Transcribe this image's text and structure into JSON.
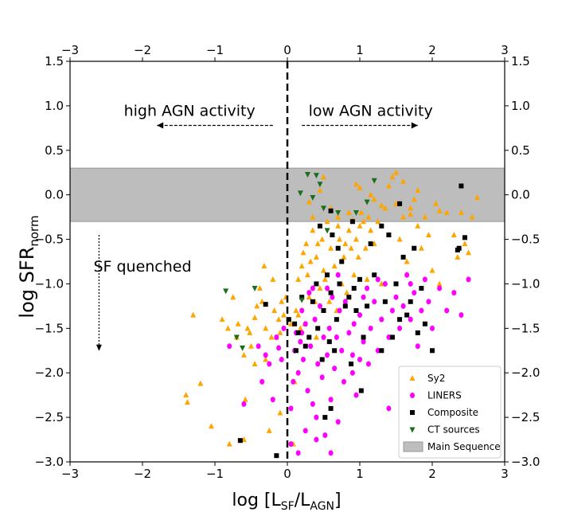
{
  "chart_data": {
    "type": "scatter",
    "xlim": [
      -3,
      3
    ],
    "ylim": [
      -3.0,
      1.5
    ],
    "xticks": [
      "−3",
      "−2",
      "−1",
      "0",
      "1",
      "2",
      "3"
    ],
    "xtick_values": [
      -3,
      -2,
      -1,
      0,
      1,
      2,
      3
    ],
    "yticks": [
      "−3.0",
      "−2.5",
      "−2.0",
      "−1.5",
      "−1.0",
      "−0.5",
      "0.0",
      "0.5",
      "1.0",
      "1.5"
    ],
    "ytick_values": [
      -3.0,
      -2.5,
      -2.0,
      -1.5,
      -1.0,
      -0.5,
      0.0,
      0.5,
      1.0,
      1.5
    ],
    "xlabel_main": "log [L",
    "xlabel_sub1": "SF",
    "xlabel_mid": "/L",
    "xlabel_sub2": "AGN",
    "xlabel_end": "]",
    "ylabel_main": "log SFR",
    "ylabel_sub": "norm",
    "main_sequence": {
      "label": "Main Sequence",
      "ymin": -0.3,
      "ymax": 0.3,
      "color": "#bdbdbd"
    },
    "vertical_line_x": 0,
    "annotations": [
      {
        "text": "high AGN activity",
        "x": -1.35,
        "y": 0.95,
        "arrow_from": -0.2,
        "arrow_to": -1.8,
        "arrow_y": 0.78
      },
      {
        "text": "low AGN activity",
        "x": 1.15,
        "y": 0.95,
        "arrow_from": 0.2,
        "arrow_to": 1.8,
        "arrow_y": 0.78
      },
      {
        "text": "SF quenched",
        "x": -2.0,
        "y": -0.8,
        "arrow_x": -2.6,
        "arrow_from": -0.45,
        "arrow_to": -1.7
      }
    ],
    "legend_position": "lower-right",
    "series": [
      {
        "name": "Sy2",
        "marker": "triangle-up",
        "color": "#ffa500",
        "points": [
          [
            -1.4,
            -2.25
          ],
          [
            -1.38,
            -2.33
          ],
          [
            -1.3,
            -1.35
          ],
          [
            -1.2,
            -2.12
          ],
          [
            -1.05,
            -2.6
          ],
          [
            -0.9,
            -1.4
          ],
          [
            -0.82,
            -1.5
          ],
          [
            -0.8,
            -2.8
          ],
          [
            -0.75,
            -1.15
          ],
          [
            -0.7,
            -1.6
          ],
          [
            -0.68,
            -1.45
          ],
          [
            -0.6,
            -1.8
          ],
          [
            -0.58,
            -2.3
          ],
          [
            -0.55,
            -1.5
          ],
          [
            -0.52,
            -1.55
          ],
          [
            -0.5,
            -1.7
          ],
          [
            -0.45,
            -1.38
          ],
          [
            -0.42,
            -1.25
          ],
          [
            -0.38,
            -1.05
          ],
          [
            -0.35,
            -1.2
          ],
          [
            -0.32,
            -0.8
          ],
          [
            -0.3,
            -1.5
          ],
          [
            -0.25,
            -2.65
          ],
          [
            -0.22,
            -1.6
          ],
          [
            -0.2,
            -0.95
          ],
          [
            -0.18,
            -1.3
          ],
          [
            -0.15,
            -1.6
          ],
          [
            -0.12,
            -1.4
          ],
          [
            -0.1,
            -1.55
          ],
          [
            -0.08,
            -1.2
          ],
          [
            -0.05,
            -1.35
          ],
          [
            -0.02,
            -1.15
          ],
          [
            0.05,
            -1.45
          ],
          [
            0.08,
            -2.8
          ],
          [
            0.12,
            -1.3
          ],
          [
            0.15,
            -1.35
          ],
          [
            0.18,
            -1.5
          ],
          [
            0.2,
            -0.8
          ],
          [
            0.22,
            -0.65
          ],
          [
            0.24,
            -1.45
          ],
          [
            0.26,
            -0.55
          ],
          [
            0.28,
            -0.9
          ],
          [
            0.3,
            -1.15
          ],
          [
            0.32,
            -0.75
          ],
          [
            0.35,
            -0.4
          ],
          [
            0.38,
            -1.2
          ],
          [
            0.4,
            -0.7
          ],
          [
            0.42,
            -0.55
          ],
          [
            0.45,
            -1.05
          ],
          [
            0.48,
            -0.5
          ],
          [
            0.5,
            -0.85
          ],
          [
            0.52,
            -0.95
          ],
          [
            0.55,
            -0.3
          ],
          [
            0.58,
            -1.2
          ],
          [
            0.6,
            -0.6
          ],
          [
            0.62,
            -0.45
          ],
          [
            0.65,
            -0.8
          ],
          [
            0.68,
            -1.3
          ],
          [
            0.7,
            -0.35
          ],
          [
            0.72,
            -0.5
          ],
          [
            0.75,
            -1.0
          ],
          [
            0.78,
            -0.7
          ],
          [
            0.8,
            -0.55
          ],
          [
            0.82,
            -1.1
          ],
          [
            0.85,
            -0.4
          ],
          [
            0.88,
            -0.6
          ],
          [
            0.9,
            -0.3
          ],
          [
            0.92,
            -0.9
          ],
          [
            0.95,
            -0.5
          ],
          [
            0.98,
            -0.7
          ],
          [
            1.0,
            -0.35
          ],
          [
            1.02,
            -0.2
          ],
          [
            1.05,
            -0.3
          ],
          [
            1.08,
            -0.6
          ],
          [
            1.1,
            -0.95
          ],
          [
            1.12,
            -0.25
          ],
          [
            1.15,
            -0.4
          ],
          [
            1.2,
            -0.55
          ],
          [
            1.25,
            -0.3
          ],
          [
            1.3,
            -1.0
          ],
          [
            1.35,
            -0.15
          ],
          [
            1.4,
            -0.45
          ],
          [
            1.45,
            0.2
          ],
          [
            1.5,
            0.25
          ],
          [
            1.55,
            -0.5
          ],
          [
            1.6,
            -0.25
          ],
          [
            1.65,
            -0.75
          ],
          [
            1.7,
            -0.15
          ],
          [
            1.75,
            -0.05
          ],
          [
            1.8,
            -0.35
          ],
          [
            1.85,
            -0.6
          ],
          [
            1.9,
            -0.25
          ],
          [
            1.95,
            -0.45
          ],
          [
            2.0,
            -0.85
          ],
          [
            2.05,
            -0.1
          ],
          [
            2.1,
            -1.0
          ],
          [
            2.2,
            -0.2
          ],
          [
            2.3,
            -0.45
          ],
          [
            2.35,
            -0.7
          ],
          [
            2.45,
            -0.55
          ],
          [
            2.5,
            -0.65
          ],
          [
            2.55,
            -0.25
          ],
          [
            2.62,
            -0.03
          ],
          [
            0.3,
            -0.08
          ],
          [
            0.45,
            0.05
          ],
          [
            0.6,
            -0.15
          ],
          [
            0.85,
            -0.2
          ],
          [
            1.0,
            0.08
          ],
          [
            1.15,
            0.0
          ],
          [
            1.3,
            -0.12
          ],
          [
            1.6,
            0.15
          ],
          [
            1.8,
            0.05
          ],
          [
            0.5,
            0.2
          ],
          [
            0.7,
            -0.25
          ],
          [
            0.95,
            0.12
          ],
          [
            1.2,
            -0.05
          ],
          [
            1.4,
            0.1
          ],
          [
            1.7,
            -0.22
          ],
          [
            2.1,
            -0.18
          ],
          [
            2.4,
            -0.2
          ],
          [
            0.35,
            -0.25
          ],
          [
            0.9,
            -0.28
          ],
          [
            1.5,
            -0.1
          ],
          [
            -0.3,
            -1.85
          ],
          [
            -0.1,
            -2.45
          ],
          [
            0.1,
            -2.1
          ],
          [
            -0.6,
            -2.75
          ],
          [
            0.15,
            -0.95
          ],
          [
            0.4,
            -1.6
          ],
          [
            -0.45,
            -1.9
          ]
        ]
      },
      {
        "name": "LINERS",
        "marker": "circle",
        "color": "#ff00ff",
        "points": [
          [
            -0.8,
            -1.7
          ],
          [
            -0.6,
            -2.35
          ],
          [
            -0.4,
            -1.7
          ],
          [
            -0.35,
            -2.1
          ],
          [
            -0.3,
            -1.8
          ],
          [
            -0.25,
            -1.9
          ],
          [
            -0.2,
            -2.3
          ],
          [
            -0.15,
            -1.6
          ],
          [
            -0.12,
            -1.72
          ],
          [
            -0.08,
            -1.85
          ],
          [
            0.05,
            -2.4
          ],
          [
            0.08,
            -2.1
          ],
          [
            0.1,
            -1.75
          ],
          [
            0.12,
            -1.55
          ],
          [
            0.15,
            -2.0
          ],
          [
            0.18,
            -1.65
          ],
          [
            0.2,
            -1.3
          ],
          [
            0.22,
            -1.85
          ],
          [
            0.25,
            -1.45
          ],
          [
            0.28,
            -2.2
          ],
          [
            0.3,
            -1.1
          ],
          [
            0.32,
            -1.7
          ],
          [
            0.35,
            -2.35
          ],
          [
            0.38,
            -1.4
          ],
          [
            0.4,
            -2.5
          ],
          [
            0.42,
            -1.9
          ],
          [
            0.45,
            -1.25
          ],
          [
            0.48,
            -2.05
          ],
          [
            0.5,
            -1.6
          ],
          [
            0.52,
            -2.7
          ],
          [
            0.55,
            -1.8
          ],
          [
            0.58,
            -1.5
          ],
          [
            0.6,
            -2.3
          ],
          [
            0.62,
            -1.15
          ],
          [
            0.65,
            -1.95
          ],
          [
            0.68,
            -1.6
          ],
          [
            0.7,
            -2.55
          ],
          [
            0.72,
            -1.3
          ],
          [
            0.75,
            -1.75
          ],
          [
            0.78,
            -2.1
          ],
          [
            0.8,
            -1.2
          ],
          [
            0.85,
            -1.55
          ],
          [
            0.9,
            -1.8
          ],
          [
            0.92,
            -1.45
          ],
          [
            0.95,
            -2.25
          ],
          [
            1.0,
            -1.35
          ],
          [
            1.05,
            -1.65
          ],
          [
            1.1,
            -1.05
          ],
          [
            1.12,
            -1.9
          ],
          [
            1.15,
            -1.5
          ],
          [
            1.2,
            -1.2
          ],
          [
            1.25,
            -1.75
          ],
          [
            1.3,
            -1.4
          ],
          [
            1.35,
            -1.0
          ],
          [
            1.4,
            -1.6
          ],
          [
            1.45,
            -1.3
          ],
          [
            1.5,
            -1.15
          ],
          [
            1.55,
            -1.5
          ],
          [
            1.6,
            -1.25
          ],
          [
            1.65,
            -0.9
          ],
          [
            1.7,
            -1.4
          ],
          [
            1.75,
            -1.1
          ],
          [
            1.8,
            -1.7
          ],
          [
            1.85,
            -1.3
          ],
          [
            1.9,
            -0.95
          ],
          [
            1.95,
            -1.2
          ],
          [
            2.0,
            -1.5
          ],
          [
            2.1,
            -1.05
          ],
          [
            2.2,
            -1.3
          ],
          [
            2.3,
            -1.1
          ],
          [
            2.4,
            -1.35
          ],
          [
            2.5,
            -0.95
          ],
          [
            0.05,
            -2.8
          ],
          [
            0.15,
            -2.9
          ],
          [
            0.25,
            -2.65
          ],
          [
            0.4,
            -2.75
          ],
          [
            0.6,
            -2.9
          ],
          [
            1.4,
            -2.4
          ],
          [
            0.9,
            -2.0
          ],
          [
            1.0,
            -1.85
          ],
          [
            -0.05,
            -1.5
          ],
          [
            0.55,
            -1.05
          ],
          [
            1.25,
            -0.95
          ],
          [
            1.7,
            -1.0
          ],
          [
            0.35,
            -1.05
          ],
          [
            0.7,
            -0.9
          ],
          [
            1.05,
            -1.15
          ],
          [
            0.2,
            -1.55
          ]
        ]
      },
      {
        "name": "Composite",
        "marker": "square",
        "color": "#000000",
        "points": [
          [
            -0.65,
            -2.76
          ],
          [
            -0.3,
            -1.23
          ],
          [
            -0.15,
            -2.93
          ],
          [
            0.02,
            -1.4
          ],
          [
            0.1,
            -1.45
          ],
          [
            0.12,
            -1.75
          ],
          [
            0.15,
            -1.55
          ],
          [
            0.2,
            -1.15
          ],
          [
            0.25,
            -1.7
          ],
          [
            0.3,
            -1.6
          ],
          [
            0.35,
            -1.2
          ],
          [
            0.4,
            -1.0
          ],
          [
            0.42,
            -1.5
          ],
          [
            0.45,
            -0.35
          ],
          [
            0.48,
            -1.85
          ],
          [
            0.5,
            -1.3
          ],
          [
            0.52,
            -2.5
          ],
          [
            0.55,
            -0.9
          ],
          [
            0.58,
            -1.65
          ],
          [
            0.6,
            -1.1
          ],
          [
            0.62,
            -0.45
          ],
          [
            0.65,
            -1.75
          ],
          [
            0.68,
            -1.4
          ],
          [
            0.7,
            -0.6
          ],
          [
            0.72,
            -1.0
          ],
          [
            0.75,
            -0.75
          ],
          [
            0.8,
            -1.25
          ],
          [
            0.85,
            -1.15
          ],
          [
            0.88,
            -1.9
          ],
          [
            0.9,
            -0.3
          ],
          [
            0.92,
            -1.05
          ],
          [
            0.95,
            -1.3
          ],
          [
            1.0,
            -0.95
          ],
          [
            1.02,
            -2.2
          ],
          [
            1.05,
            -1.6
          ],
          [
            1.1,
            -1.25
          ],
          [
            1.15,
            -0.55
          ],
          [
            1.2,
            -0.9
          ],
          [
            1.3,
            -1.75
          ],
          [
            1.35,
            -1.2
          ],
          [
            1.4,
            -0.45
          ],
          [
            1.45,
            -1.6
          ],
          [
            1.5,
            -1.0
          ],
          [
            1.55,
            -1.4
          ],
          [
            1.6,
            -0.7
          ],
          [
            1.65,
            -1.35
          ],
          [
            1.7,
            -1.2
          ],
          [
            1.75,
            -0.6
          ],
          [
            1.8,
            -1.55
          ],
          [
            1.85,
            -1.05
          ],
          [
            1.9,
            -1.45
          ],
          [
            2.0,
            -1.75
          ],
          [
            2.35,
            -0.62
          ],
          [
            2.37,
            -0.6
          ],
          [
            2.45,
            -0.48
          ],
          [
            1.55,
            -0.1
          ],
          [
            2.4,
            0.1
          ],
          [
            0.6,
            -2.4
          ],
          [
            1.3,
            -0.35
          ],
          [
            0.6,
            -0.18
          ]
        ]
      },
      {
        "name": "CT sources",
        "marker": "triangle-down",
        "color": "#1a6e1a",
        "points": [
          [
            -0.85,
            -1.08
          ],
          [
            -0.7,
            -1.6
          ],
          [
            -0.62,
            -1.72
          ],
          [
            -0.45,
            -1.05
          ],
          [
            0.2,
            -1.18
          ],
          [
            0.18,
            0.02
          ],
          [
            0.28,
            0.23
          ],
          [
            0.35,
            -0.03
          ],
          [
            0.4,
            0.22
          ],
          [
            0.45,
            0.12
          ],
          [
            0.5,
            -0.15
          ],
          [
            0.55,
            -0.4
          ],
          [
            0.7,
            -0.2
          ],
          [
            0.95,
            -0.2
          ],
          [
            1.2,
            0.16
          ],
          [
            1.1,
            -0.08
          ]
        ]
      }
    ]
  }
}
